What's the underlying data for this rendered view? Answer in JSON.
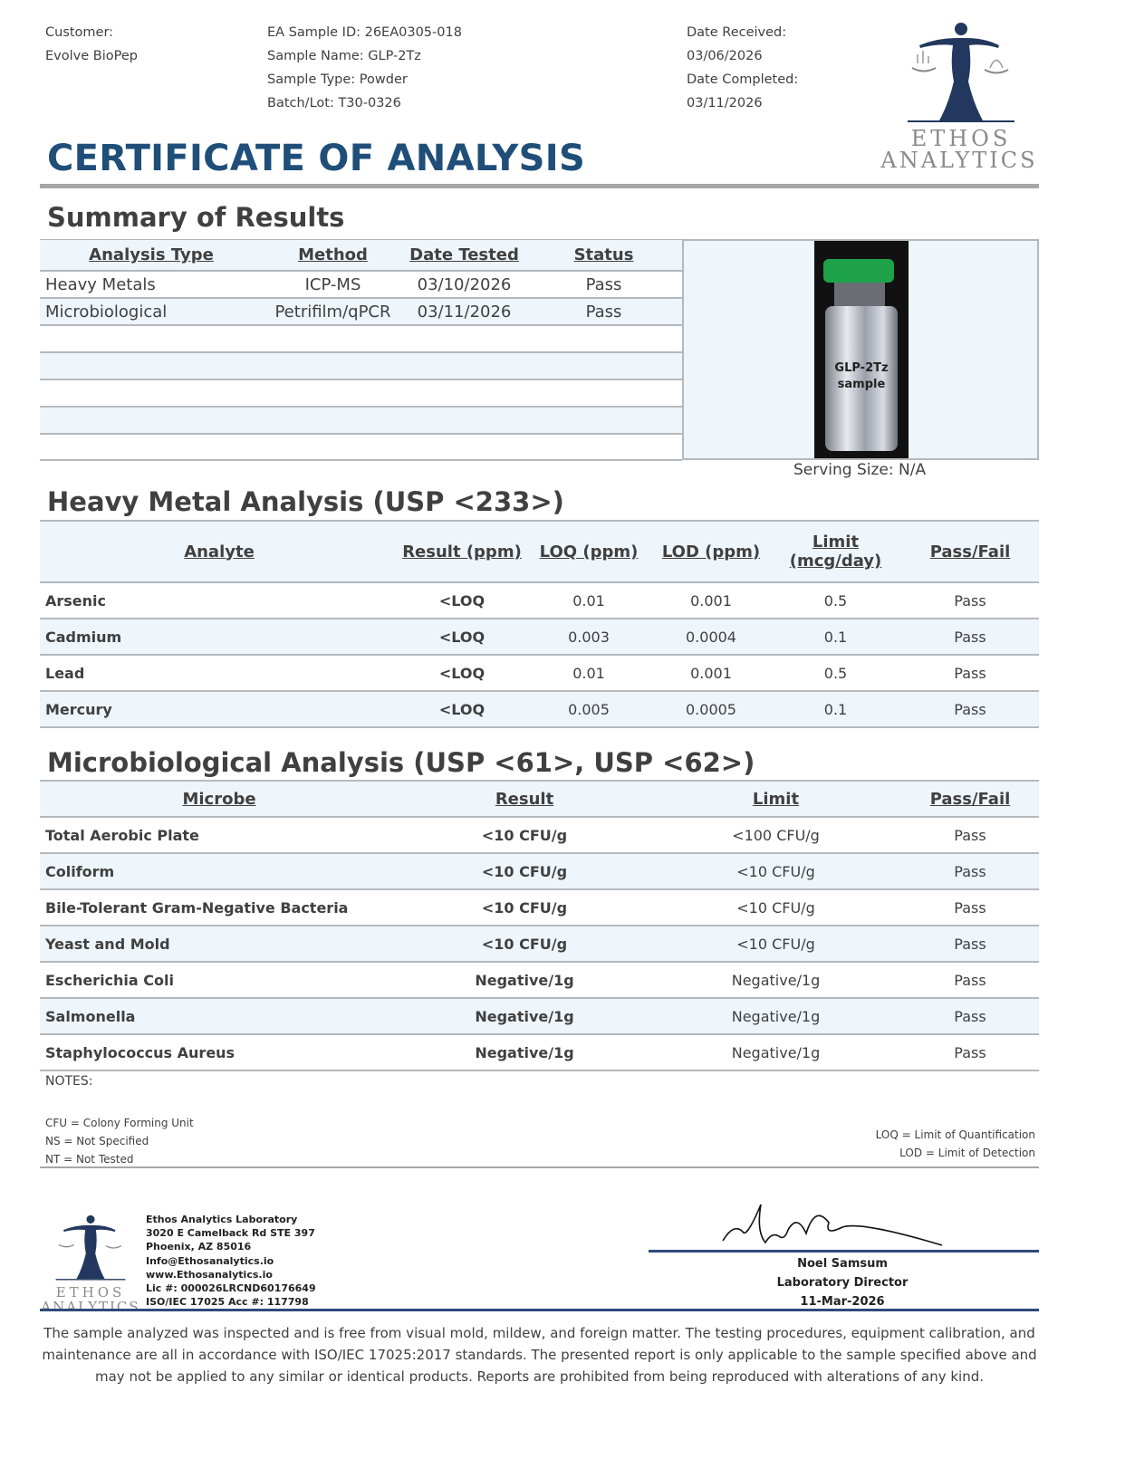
{
  "header": {
    "customer_label": "Customer:",
    "customer": "Evolve BioPep",
    "sample_id": "EA Sample ID: 26EA0305-018",
    "sample_name": "Sample Name: GLP-2Tz",
    "sample_type": "Sample Type: Powder",
    "batch": "Batch/Lot: T30-0326",
    "date_received_label": "Date Received:",
    "date_received": "03/06/2026",
    "date_completed_label": "Date Completed:",
    "date_completed": "03/11/2026",
    "logo_line1": "ETHOS",
    "logo_line2": "ANALYTICS",
    "title": "CERTIFICATE OF ANALYSIS"
  },
  "summary": {
    "heading": "Summary of Results",
    "columns": [
      "Analysis Type",
      "Method",
      "Date Tested",
      "Status"
    ],
    "rows": [
      [
        "Heavy Metals",
        "ICP-MS",
        "03/10/2026",
        "Pass"
      ],
      [
        "Microbiological",
        "Petrifilm/qPCR",
        "03/11/2026",
        "Pass"
      ]
    ],
    "vial_label_line1": "GLP-2Tz",
    "vial_label_line2": "sample",
    "serving_size": "Serving Size: N/A"
  },
  "heavy_metals": {
    "heading": "Heavy Metal Analysis (USP <233>)",
    "columns": [
      "Analyte ",
      "Result (ppm)",
      "LOQ (ppm)",
      "LOD (ppm)",
      "Limit ",
      "(mcg/day)",
      "Pass/Fail"
    ],
    "rows": [
      [
        "Arsenic",
        "<LOQ",
        "0.01",
        "0.001",
        "0.5",
        "Pass"
      ],
      [
        "Cadmium",
        "<LOQ",
        "0.003",
        "0.0004",
        "0.1",
        "Pass"
      ],
      [
        "Lead",
        "<LOQ",
        "0.01",
        "0.001",
        "0.5",
        "Pass"
      ],
      [
        "Mercury",
        "<LOQ",
        "0.005",
        "0.0005",
        "0.1",
        "Pass"
      ]
    ]
  },
  "micro": {
    "heading": "Microbiological Analysis (USP <61>, USP <62>)",
    "columns": [
      "Microbe ",
      "Result",
      "Limit",
      "Pass/Fail"
    ],
    "rows": [
      [
        "Total Aerobic Plate",
        "<10 CFU/g",
        "<100 CFU/g",
        "Pass"
      ],
      [
        "Coliform",
        "<10 CFU/g",
        "<10 CFU/g",
        "Pass"
      ],
      [
        "Bile-Tolerant Gram-Negative Bacteria",
        "<10 CFU/g",
        "<10 CFU/g",
        "Pass"
      ],
      [
        "Yeast and Mold",
        "<10 CFU/g",
        "<10 CFU/g",
        "Pass"
      ],
      [
        "Escherichia Coli",
        "Negative/1g",
        "Negative/1g",
        "Pass"
      ],
      [
        "Salmonella",
        "Negative/1g",
        "Negative/1g",
        "Pass"
      ],
      [
        "Staphylococcus Aureus",
        "Negative/1g",
        "Negative/1g",
        "Pass"
      ]
    ]
  },
  "notes": {
    "label": "NOTES:",
    "left": [
      "CFU = Colony Forming Unit",
      "NS = Not Specified",
      "NT = Not Tested"
    ],
    "right": [
      "LOQ = Limit of Quantification",
      "LOD = Limit of Detection"
    ]
  },
  "footer": {
    "lab_lines": [
      "Ethos Analytics Laboratory",
      "3020 E Camelback Rd STE 397",
      "Phoenix, AZ 85016",
      "Info@Ethosanalytics.io",
      "www.Ethosanalytics.io",
      "Lic #: 000026LRCND60176649",
      "ISO/IEC 17025 Acc #: 117798"
    ],
    "signer_name": "Noel Samsum",
    "signer_title": "Laboratory Director",
    "sign_date": "11-Mar-2026",
    "disclaimer": "The sample analyzed was inspected and is free from visual mold, mildew, and foreign matter. The testing procedures, equipment calibration, and maintenance are all in accordance with ISO/IEC 17025:2017 standards. The presented report is only applicable to the sample specified above and may not be applied to any similar or identical products. Reports are prohibited from being reproduced with alterations of any kind."
  },
  "colors": {
    "title": "#1f4e79",
    "row_shade": "#eef5fb",
    "rule": "#a6a6a6",
    "footer_rule": "#2e4a7d",
    "logo": "#22385e"
  }
}
